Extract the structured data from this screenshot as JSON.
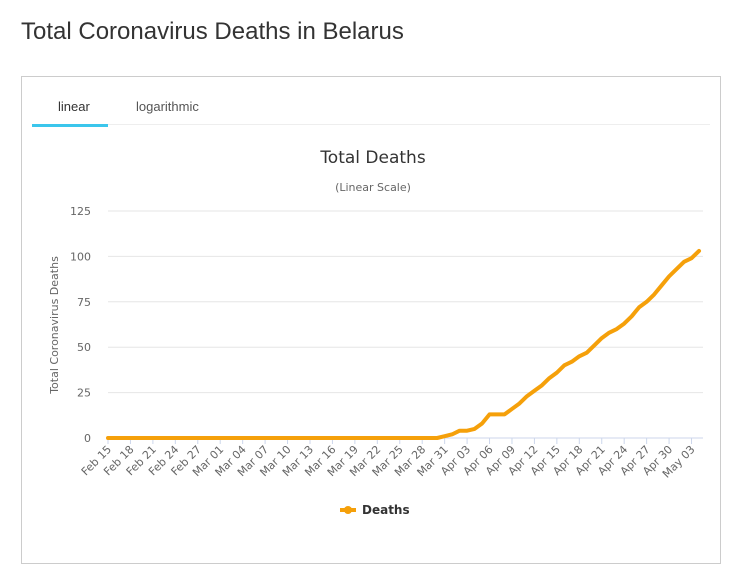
{
  "page_title": "Total Coronavirus Deaths in Belarus",
  "tabs": [
    "linear",
    "logarithmic"
  ],
  "chart_data": {
    "type": "line",
    "title": "Total Deaths",
    "subtitle": "(Linear Scale)",
    "y_label": "Total Coronavirus Deaths",
    "categories": [
      "Feb 15",
      null,
      null,
      "Feb 18",
      null,
      null,
      "Feb 21",
      null,
      null,
      "Feb 24",
      null,
      null,
      "Feb 27",
      null,
      null,
      "Mar 01",
      null,
      null,
      "Mar 04",
      null,
      null,
      "Mar 07",
      null,
      null,
      "Mar 10",
      null,
      null,
      "Mar 13",
      null,
      null,
      "Mar 16",
      null,
      null,
      "Mar 19",
      null,
      null,
      "Mar 22",
      null,
      null,
      "Mar 25",
      null,
      null,
      "Mar 28",
      null,
      null,
      "Mar 31",
      null,
      null,
      "Apr 03",
      null,
      null,
      "Apr 06",
      null,
      null,
      "Apr 09",
      null,
      null,
      "Apr 12",
      null,
      null,
      "Apr 15",
      null,
      null,
      "Apr 18",
      null,
      null,
      "Apr 21",
      null,
      null,
      "Apr 24",
      null,
      null,
      "Apr 27",
      null,
      null,
      "Apr 30",
      null,
      null,
      "May 03",
      null
    ],
    "series": [
      {
        "name": "Deaths",
        "color": "#f5a00a",
        "values": [
          0,
          0,
          0,
          0,
          0,
          0,
          0,
          0,
          0,
          0,
          0,
          0,
          0,
          0,
          0,
          0,
          0,
          0,
          0,
          0,
          0,
          0,
          0,
          0,
          0,
          0,
          0,
          0,
          0,
          0,
          0,
          0,
          0,
          0,
          0,
          0,
          0,
          0,
          0,
          0,
          0,
          0,
          0,
          0,
          0,
          1,
          2,
          4,
          4,
          5,
          8,
          13,
          13,
          13,
          16,
          19,
          23,
          26,
          29,
          33,
          36,
          40,
          42,
          45,
          47,
          51,
          55,
          58,
          60,
          63,
          67,
          72,
          75,
          79,
          84,
          89,
          93,
          97,
          99,
          103
        ]
      }
    ],
    "ylim": [
      0,
      125
    ],
    "yticks": [
      0,
      25,
      50,
      75,
      100,
      125
    ],
    "grid": true,
    "legend": "bottom"
  }
}
